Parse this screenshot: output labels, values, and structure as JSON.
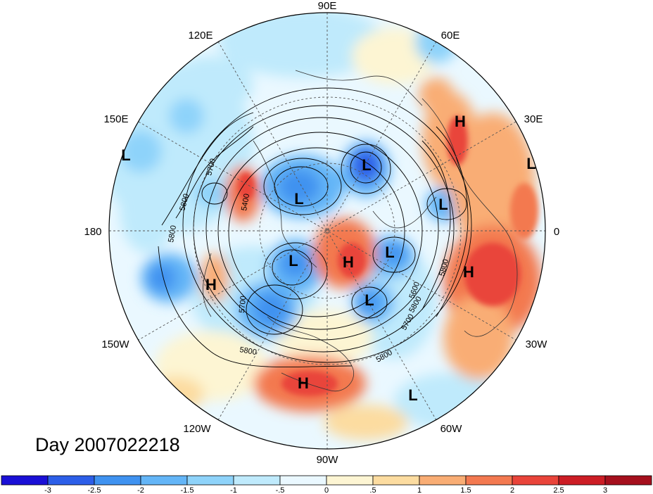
{
  "title": "Day 2007022218",
  "longitude_labels": [
    "90E",
    "60E",
    "30E",
    "0",
    "30W",
    "60W",
    "90W",
    "120W",
    "150W",
    "180",
    "150E",
    "120E"
  ],
  "pressure_centers": [
    "L",
    "L",
    "L",
    "L",
    "L",
    "L",
    "L",
    "L",
    "L",
    "H",
    "H",
    "H",
    "H",
    "H"
  ],
  "contour_labels": [
    "5700",
    "5800",
    "5400",
    "5800",
    "5700",
    "5800",
    "5800",
    "5800",
    "5600",
    "5700",
    "5800"
  ],
  "colorbar": {
    "tick_labels": [
      "-3",
      "-2.5",
      "-2",
      "-1.5",
      "-1",
      "-.5",
      "0",
      ".5",
      "1",
      "1.5",
      "2",
      "2.5",
      "3"
    ],
    "colors": [
      "#1a0fd6",
      "#2c5ee8",
      "#3f92f0",
      "#63b5f7",
      "#8ed3fa",
      "#bfeafc",
      "#eaf8ff",
      "#fdf5d3",
      "#fcdca0",
      "#f9ad74",
      "#f37950",
      "#e9443a",
      "#cc1d25",
      "#a50f1d"
    ]
  },
  "palette": {
    "dark_blue": "#2c5ee8",
    "mid_blue": "#63b5f7",
    "light_blue": "#bfeafc",
    "neutral": "#eaf8ff",
    "light_orange": "#fcdca0",
    "orange": "#f9ad74",
    "red": "#e9443a"
  }
}
